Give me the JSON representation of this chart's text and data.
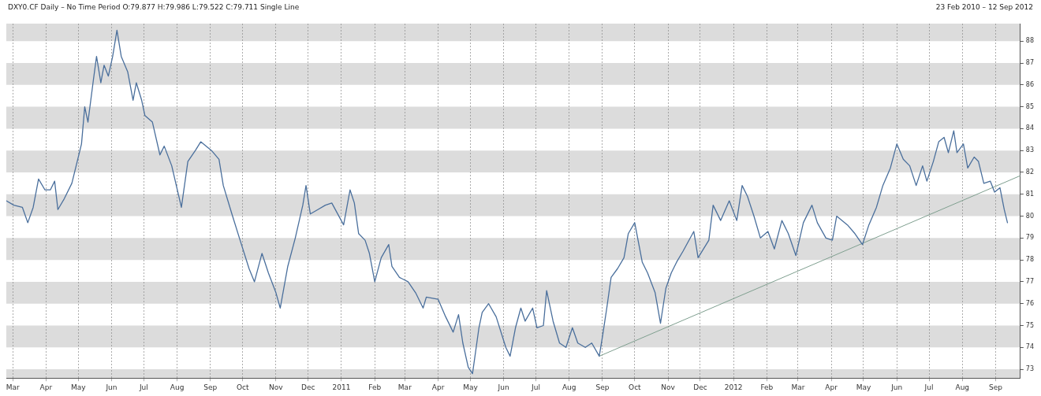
{
  "chart_data": {
    "type": "line",
    "title": "DXY0.CF Daily –  No Time Period O:79.877 H:79.986 L:79.522 C:79.711 Single Line",
    "subtitle": "23 Feb 2010  –  12 Sep 2012",
    "xlim": [
      "2010-02-23",
      "2012-09-24"
    ],
    "xticks": [
      {
        "value": "2010-03-01",
        "label": "Mar"
      },
      {
        "value": "2010-04-01",
        "label": "Apr"
      },
      {
        "value": "2010-05-01",
        "label": "May"
      },
      {
        "value": "2010-06-01",
        "label": "Jun"
      },
      {
        "value": "2010-07-01",
        "label": "Jul"
      },
      {
        "value": "2010-08-01",
        "label": "Aug"
      },
      {
        "value": "2010-09-01",
        "label": "Sep"
      },
      {
        "value": "2010-10-01",
        "label": "Oct"
      },
      {
        "value": "2010-11-01",
        "label": "Nov"
      },
      {
        "value": "2010-12-01",
        "label": "Dec"
      },
      {
        "value": "2011-01-01",
        "label": "2011"
      },
      {
        "value": "2011-02-01",
        "label": "Feb"
      },
      {
        "value": "2011-03-01",
        "label": "Mar"
      },
      {
        "value": "2011-04-01",
        "label": "Apr"
      },
      {
        "value": "2011-05-01",
        "label": "May"
      },
      {
        "value": "2011-06-01",
        "label": "Jun"
      },
      {
        "value": "2011-07-01",
        "label": "Jul"
      },
      {
        "value": "2011-08-01",
        "label": "Aug"
      },
      {
        "value": "2011-09-01",
        "label": "Sep"
      },
      {
        "value": "2011-10-01",
        "label": "Oct"
      },
      {
        "value": "2011-11-01",
        "label": "Nov"
      },
      {
        "value": "2011-12-01",
        "label": "Dec"
      },
      {
        "value": "2012-01-01",
        "label": "2012"
      },
      {
        "value": "2012-02-01",
        "label": "Feb"
      },
      {
        "value": "2012-03-01",
        "label": "Mar"
      },
      {
        "value": "2012-04-01",
        "label": "Apr"
      },
      {
        "value": "2012-05-01",
        "label": "May"
      },
      {
        "value": "2012-06-01",
        "label": "Jun"
      },
      {
        "value": "2012-07-01",
        "label": "Jul"
      },
      {
        "value": "2012-08-01",
        "label": "Aug"
      },
      {
        "value": "2012-09-01",
        "label": "Sep"
      }
    ],
    "ylim": [
      72.6,
      88.8
    ],
    "yticks": [
      73,
      74,
      75,
      76,
      77,
      78,
      79,
      80,
      81,
      82,
      83,
      84,
      85,
      86,
      87,
      88
    ],
    "grid": true,
    "series": [
      {
        "color": "#4a6f9c",
        "x": [
          "2010-02-23",
          "2010-03-02",
          "2010-03-10",
          "2010-03-15",
          "2010-03-20",
          "2010-03-25",
          "2010-03-31",
          "2010-04-05",
          "2010-04-09",
          "2010-04-12",
          "2010-04-18",
          "2010-04-25",
          "2010-04-30",
          "2010-05-04",
          "2010-05-07",
          "2010-05-10",
          "2010-05-15",
          "2010-05-18",
          "2010-05-22",
          "2010-05-25",
          "2010-05-29",
          "2010-06-02",
          "2010-06-06",
          "2010-06-10",
          "2010-06-16",
          "2010-06-21",
          "2010-06-24",
          "2010-06-29",
          "2010-07-02",
          "2010-07-09",
          "2010-07-16",
          "2010-07-20",
          "2010-07-27",
          "2010-08-05",
          "2010-08-11",
          "2010-08-18",
          "2010-08-23",
          "2010-09-02",
          "2010-09-09",
          "2010-09-13",
          "2010-09-21",
          "2010-09-28",
          "2010-10-07",
          "2010-10-12",
          "2010-10-19",
          "2010-10-25",
          "2010-11-01",
          "2010-11-05",
          "2010-11-12",
          "2010-11-19",
          "2010-11-26",
          "2010-11-29",
          "2010-12-03",
          "2010-12-10",
          "2010-12-17",
          "2010-12-23",
          "2011-01-03",
          "2011-01-09",
          "2011-01-13",
          "2011-01-17",
          "2011-01-23",
          "2011-01-27",
          "2011-02-01",
          "2011-02-07",
          "2011-02-14",
          "2011-02-17",
          "2011-02-24",
          "2011-03-04",
          "2011-03-11",
          "2011-03-18",
          "2011-03-21",
          "2011-04-01",
          "2011-04-08",
          "2011-04-15",
          "2011-04-20",
          "2011-04-24",
          "2011-04-29",
          "2011-05-03",
          "2011-05-09",
          "2011-05-12",
          "2011-05-18",
          "2011-05-25",
          "2011-06-03",
          "2011-06-07",
          "2011-06-12",
          "2011-06-17",
          "2011-06-21",
          "2011-06-28",
          "2011-07-02",
          "2011-07-08",
          "2011-07-11",
          "2011-07-17",
          "2011-07-23",
          "2011-07-29",
          "2011-08-04",
          "2011-08-09",
          "2011-08-16",
          "2011-08-22",
          "2011-08-29",
          "2011-09-01",
          "2011-09-05",
          "2011-09-09",
          "2011-09-15",
          "2011-09-21",
          "2011-09-25",
          "2011-10-01",
          "2011-10-08",
          "2011-10-13",
          "2011-10-20",
          "2011-10-25",
          "2011-10-30",
          "2011-11-04",
          "2011-11-09",
          "2011-11-15",
          "2011-11-25",
          "2011-11-29",
          "2011-12-09",
          "2011-12-13",
          "2011-12-20",
          "2011-12-28",
          "2012-01-04",
          "2012-01-09",
          "2012-01-14",
          "2012-01-20",
          "2012-01-26",
          "2012-02-02",
          "2012-02-08",
          "2012-02-15",
          "2012-02-21",
          "2012-02-28",
          "2012-03-06",
          "2012-03-14",
          "2012-03-19",
          "2012-03-27",
          "2012-04-02",
          "2012-04-06",
          "2012-04-16",
          "2012-04-23",
          "2012-04-30",
          "2012-05-06",
          "2012-05-13",
          "2012-05-19",
          "2012-05-26",
          "2012-06-01",
          "2012-06-07",
          "2012-06-13",
          "2012-06-19",
          "2012-06-25",
          "2012-06-29",
          "2012-07-05",
          "2012-07-10",
          "2012-07-15",
          "2012-07-19",
          "2012-07-24",
          "2012-07-27",
          "2012-08-02",
          "2012-08-06",
          "2012-08-12",
          "2012-08-16",
          "2012-08-21",
          "2012-08-27",
          "2012-08-31",
          "2012-09-05",
          "2012-09-09",
          "2012-09-12"
        ],
        "values": [
          80.7,
          80.5,
          80.4,
          79.7,
          80.4,
          81.7,
          81.2,
          81.2,
          81.6,
          80.3,
          80.8,
          81.5,
          82.5,
          83.3,
          85.0,
          84.3,
          86.2,
          87.3,
          86.1,
          86.9,
          86.4,
          87.3,
          88.5,
          87.3,
          86.6,
          85.3,
          86.1,
          85.3,
          84.6,
          84.3,
          82.8,
          83.2,
          82.3,
          80.4,
          82.5,
          83.0,
          83.4,
          83.0,
          82.6,
          81.4,
          80.1,
          79.0,
          77.6,
          77.0,
          78.3,
          77.4,
          76.5,
          75.8,
          77.7,
          79.0,
          80.5,
          81.4,
          80.1,
          80.3,
          80.5,
          80.6,
          79.6,
          81.2,
          80.6,
          79.2,
          78.9,
          78.3,
          77.0,
          78.1,
          78.7,
          77.7,
          77.2,
          77.0,
          76.5,
          75.8,
          76.3,
          76.2,
          75.4,
          74.7,
          75.5,
          74.2,
          73.1,
          72.8,
          74.9,
          75.6,
          76.0,
          75.4,
          74.0,
          73.6,
          74.9,
          75.8,
          75.2,
          75.8,
          74.9,
          75.0,
          76.6,
          75.2,
          74.2,
          74.0,
          74.9,
          74.2,
          74.0,
          74.2,
          73.6,
          74.5,
          75.8,
          77.2,
          77.6,
          78.1,
          79.2,
          79.7,
          77.9,
          77.4,
          76.5,
          75.1,
          76.7,
          77.4,
          77.9,
          78.4,
          79.3,
          78.1,
          78.9,
          80.5,
          79.8,
          80.7,
          79.8,
          81.4,
          80.9,
          80.0,
          79.0,
          79.3,
          78.5,
          79.8,
          79.2,
          78.2,
          79.7,
          80.5,
          79.7,
          79.0,
          78.9,
          80.0,
          79.6,
          79.2,
          78.7,
          79.6,
          80.4,
          81.4,
          82.2,
          83.3,
          82.6,
          82.3,
          81.4,
          82.3,
          81.6,
          82.5,
          83.4,
          83.6,
          82.9,
          83.9,
          82.9,
          83.3,
          82.2,
          82.7,
          82.5,
          81.5,
          81.6,
          81.1,
          81.3,
          80.3,
          79.7
        ]
      },
      {
        "type": "line",
        "color": "#7f9f8f",
        "x": [
          "2011-08-29",
          "2012-09-24"
        ],
        "values": [
          73.6,
          81.85
        ]
      }
    ]
  }
}
